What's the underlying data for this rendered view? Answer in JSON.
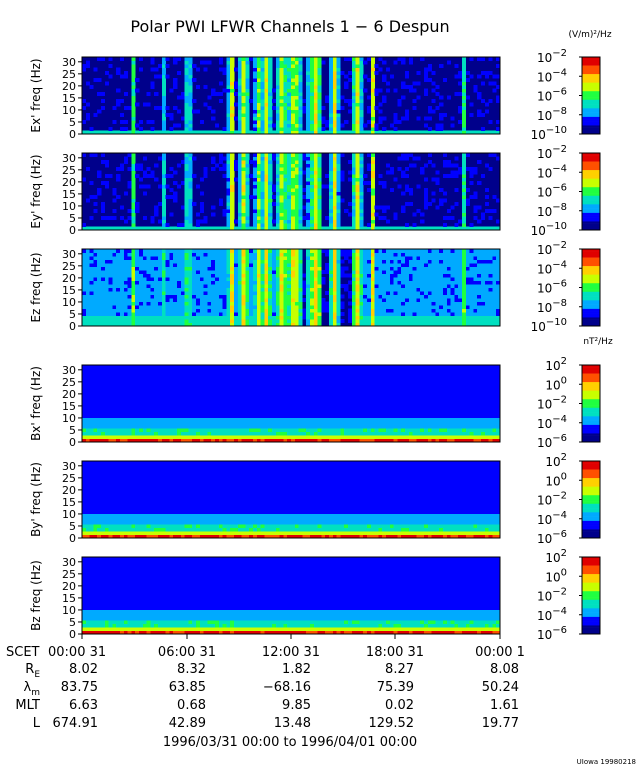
{
  "title": "Polar PWI LFWR Channels 1 − 6 Despun",
  "unit_e": "(V/m)²/Hz",
  "unit_b": "nT²/Hz",
  "panels": [
    {
      "ylabel": "Ex' freq (Hz)",
      "kind": "e"
    },
    {
      "ylabel": "Ey' freq (Hz)",
      "kind": "e"
    },
    {
      "ylabel": "Ez freq (Hz)",
      "kind": "ez"
    },
    {
      "ylabel": "Bx' freq (Hz)",
      "kind": "b"
    },
    {
      "ylabel": "By' freq (Hz)",
      "kind": "b"
    },
    {
      "ylabel": "Bz freq (Hz)",
      "kind": "b"
    }
  ],
  "y_ticks": [
    "0",
    "5",
    "10",
    "15",
    "20",
    "25",
    "30"
  ],
  "colorbar_e_ticks": [
    {
      "base": "10",
      "exp": "−2"
    },
    {
      "base": "10",
      "exp": "−4"
    },
    {
      "base": "10",
      "exp": "−6"
    },
    {
      "base": "10",
      "exp": "−8"
    },
    {
      "base": "10",
      "exp": "−10"
    }
  ],
  "colorbar_b_ticks": [
    {
      "base": "10",
      "exp": "2"
    },
    {
      "base": "10",
      "exp": "0"
    },
    {
      "base": "10",
      "exp": "−2"
    },
    {
      "base": "10",
      "exp": "−4"
    },
    {
      "base": "10",
      "exp": "−6"
    }
  ],
  "time_axis": {
    "scet_label": "SCET",
    "ticks": [
      "00:00 31",
      "06:00 31",
      "12:00 31",
      "18:00 31",
      "00:00  1"
    ]
  },
  "ephemeris": {
    "rows": [
      {
        "label": "R",
        "sub": "E",
        "values": [
          "8.02",
          "8.32",
          "1.82",
          "8.27",
          "8.08"
        ]
      },
      {
        "label": "λ",
        "sub": "m",
        "values": [
          "83.75",
          "63.85",
          "−68.16",
          "75.39",
          "50.24"
        ]
      },
      {
        "label": "MLT",
        "sub": "",
        "values": [
          "6.63",
          "0.68",
          "9.85",
          "0.02",
          "1.61"
        ]
      },
      {
        "label": "L",
        "sub": "",
        "values": [
          "674.91",
          "42.89",
          "13.48",
          "129.52",
          "19.77"
        ]
      }
    ]
  },
  "date_range": "1996/03/31 00:00 to 1996/04/01 00:00",
  "credit": "UIowa 19980218",
  "chart_data": {
    "type": "heatmap",
    "x_range_hours": [
      0,
      24
    ],
    "y_range_hz": [
      0,
      32
    ],
    "colorscale": [
      "#00008b",
      "#0000ff",
      "#00aaff",
      "#00e0c0",
      "#20ff40",
      "#c8ff00",
      "#ffd000",
      "#ff5000",
      "#e00000"
    ],
    "colorbar_e_range": [
      -10,
      -2
    ],
    "colorbar_b_range": [
      -6,
      2
    ],
    "e_bursts_hours": [
      [
        3.0,
        0.12
      ],
      [
        4.6,
        0.12
      ],
      [
        6.1,
        0.14
      ],
      [
        8.6,
        0.22
      ],
      [
        9.3,
        0.28
      ],
      [
        10.1,
        0.18
      ],
      [
        10.6,
        0.3
      ],
      [
        11.5,
        0.35
      ],
      [
        12.2,
        0.45
      ],
      [
        13.4,
        0.45
      ],
      [
        14.5,
        0.25
      ],
      [
        15.8,
        0.3
      ],
      [
        16.7,
        0.08
      ],
      [
        21.9,
        0.05
      ]
    ],
    "ez_gap_hours": [
      12.5,
      15.4
    ]
  }
}
